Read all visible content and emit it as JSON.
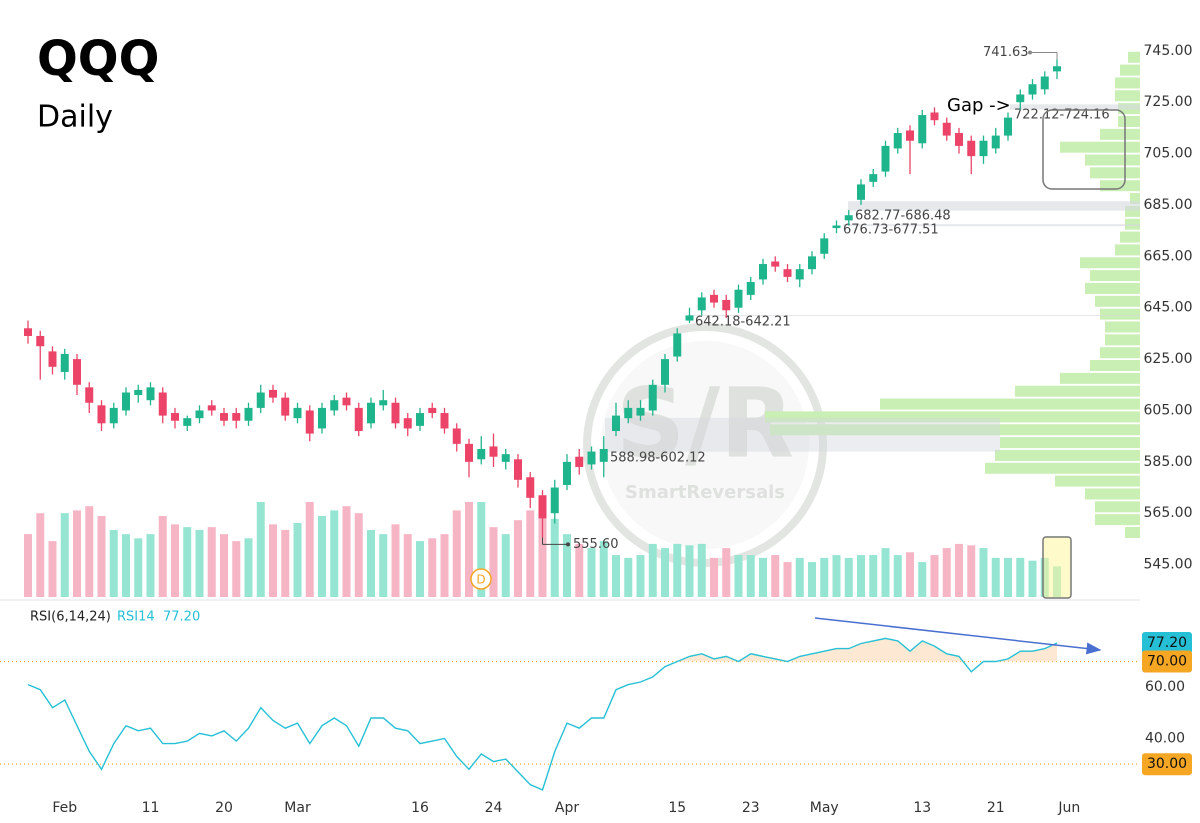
{
  "chart_data": [
    {
      "type": "candlestick",
      "title": "QQQ",
      "subtitle": "Daily",
      "categories": [
        null,
        null,
        null,
        "Feb",
        null,
        null,
        null,
        null,
        null,
        null,
        "11",
        null,
        null,
        null,
        null,
        null,
        "20",
        null,
        null,
        null,
        null,
        null,
        "Mar",
        null,
        null,
        null,
        null,
        null,
        null,
        null,
        null,
        null,
        "16",
        null,
        null,
        null,
        null,
        null,
        "24",
        null,
        null,
        null,
        null,
        null,
        "Apr",
        null,
        null,
        null,
        null,
        null,
        null,
        null,
        null,
        "15",
        null,
        null,
        null,
        null,
        null,
        "23",
        null,
        null,
        null,
        null,
        null,
        "May",
        null,
        null,
        null,
        null,
        null,
        null,
        null,
        "13",
        null,
        null,
        null,
        null,
        null,
        "21",
        null,
        null,
        null,
        null,
        null,
        "Jun"
      ],
      "open": [
        637,
        634,
        628,
        620,
        625,
        614,
        607,
        600,
        605,
        611,
        609,
        612,
        604,
        599,
        602,
        607,
        604,
        604,
        601,
        606,
        613,
        610,
        602,
        605,
        598,
        605,
        610,
        606,
        600,
        607,
        608,
        602,
        599,
        606,
        604,
        598,
        592,
        586,
        591,
        585,
        586,
        579,
        572,
        565,
        576,
        587,
        584,
        585,
        597,
        602,
        603,
        605,
        615,
        626,
        640,
        644,
        650,
        648,
        645,
        650,
        656,
        663,
        660,
        656,
        660,
        666,
        676,
        679,
        687,
        694,
        698,
        707,
        714,
        709,
        721,
        717,
        713,
        710,
        704,
        707,
        712,
        725,
        728,
        730,
        737,
        null
      ],
      "high": [
        640,
        636,
        630,
        629,
        627,
        616,
        609,
        608,
        614,
        615,
        616,
        614,
        606,
        603,
        607,
        609,
        606,
        606,
        608,
        615,
        615,
        612,
        608,
        607,
        608,
        611,
        612,
        608,
        610,
        613,
        610,
        604,
        606,
        608,
        606,
        600,
        594,
        595,
        596,
        590,
        588,
        581,
        574,
        578,
        588,
        590,
        591,
        595,
        608,
        609,
        609,
        617,
        627,
        637,
        645,
        651,
        652,
        650,
        654,
        657,
        664,
        665,
        662,
        662,
        667,
        674,
        679,
        683,
        695,
        699,
        710,
        715,
        716,
        722,
        723,
        719,
        715,
        712,
        712,
        715,
        721,
        730,
        734,
        737,
        741.63,
        null
      ],
      "low": [
        631,
        617,
        619,
        617,
        611,
        604,
        597,
        598,
        603,
        608,
        607,
        600,
        598,
        597,
        600,
        603,
        599,
        598,
        599,
        604,
        608,
        601,
        600,
        593,
        596,
        603,
        605,
        595,
        598,
        605,
        598,
        595,
        597,
        602,
        596,
        589,
        579,
        584,
        583,
        582,
        575,
        567,
        555.6,
        561,
        574,
        580,
        582,
        579,
        595,
        600,
        601,
        603,
        612,
        624,
        639,
        642,
        645,
        641,
        643,
        648,
        654,
        659,
        655,
        653,
        658,
        664,
        674,
        677,
        685,
        692,
        696,
        705,
        697,
        707,
        716,
        710,
        705,
        697,
        701,
        705,
        710,
        722,
        726,
        728,
        734,
        null
      ],
      "close": [
        634,
        630,
        622,
        627,
        615,
        608,
        600,
        606,
        612,
        613,
        614,
        603,
        601,
        602,
        605,
        605,
        601,
        601,
        606,
        612,
        610,
        603,
        606,
        596,
        606,
        609,
        607,
        597,
        608,
        609,
        600,
        598,
        604,
        604,
        598,
        592,
        585,
        590,
        587,
        588,
        578,
        571,
        563,
        575,
        585,
        583,
        589,
        590,
        603,
        606,
        606,
        615,
        625,
        635,
        642,
        649,
        647,
        644,
        652,
        655,
        662,
        661,
        657,
        660,
        665,
        672,
        677,
        681,
        693,
        697,
        708,
        713,
        710,
        720,
        718,
        712,
        708,
        704,
        710,
        712,
        719,
        728,
        732,
        735,
        739,
        null
      ],
      "volume": [
        45,
        60,
        40,
        60,
        62,
        65,
        58,
        48,
        45,
        42,
        45,
        58,
        52,
        50,
        48,
        50,
        45,
        40,
        42,
        68,
        52,
        48,
        53,
        68,
        58,
        62,
        65,
        60,
        48,
        45,
        52,
        45,
        40,
        42,
        45,
        62,
        68,
        68,
        50,
        45,
        55,
        62,
        58,
        56,
        45,
        38,
        35,
        40,
        30,
        28,
        30,
        38,
        35,
        38,
        37,
        38,
        28,
        35,
        30,
        30,
        28,
        30,
        25,
        28,
        25,
        28,
        30,
        28,
        30,
        30,
        35,
        30,
        32,
        25,
        30,
        35,
        38,
        37,
        35,
        28,
        28,
        28,
        26,
        28,
        22,
        null
      ],
      "up_color": "#1fb58c",
      "down_color": "#ec4468",
      "volume_up_color": "#95e5d2",
      "volume_down_color": "#f6b5c5",
      "ylim": [
        532,
        757
      ],
      "yticks": [
        {
          "value": 545,
          "label": "545.00"
        },
        {
          "value": 565,
          "label": "565.00"
        },
        {
          "value": 585,
          "label": "585.00"
        },
        {
          "value": 605,
          "label": "605.00"
        },
        {
          "value": 625,
          "label": "625.00"
        },
        {
          "value": 645,
          "label": "645.00"
        },
        {
          "value": 665,
          "label": "665.00"
        },
        {
          "value": 685,
          "label": "685.00"
        },
        {
          "value": 705,
          "label": "705.00"
        },
        {
          "value": 725,
          "label": "725.00"
        },
        {
          "value": 745,
          "label": "745.00"
        }
      ],
      "grid": false,
      "high_label": {
        "label": "741.63",
        "value": 741.63
      },
      "low_label": {
        "label": "555.60",
        "value": 555.6
      },
      "gaps": [
        {
          "label": "722.12-724.16",
          "low": 722.12,
          "high": 724.16
        },
        {
          "label": "682.77-686.48",
          "low": 682.77,
          "high": 686.48
        },
        {
          "label": "676.73-677.51",
          "low": 676.73,
          "high": 677.51
        },
        {
          "label": "642.18-642.21",
          "low": 642.18,
          "high": 642.21
        },
        {
          "label": "588.98-602.12",
          "low": 588.98,
          "high": 602.12
        }
      ],
      "gap_note": "Gap ->",
      "dividend_marker": "D",
      "volume_profile": {
        "color": "#c9efb4",
        "levels": [
          742.5,
          737.5,
          732.5,
          727.5,
          722.5,
          717.5,
          712.5,
          707.5,
          702.5,
          697.5,
          692.5,
          687.5,
          682.5,
          677.5,
          672.5,
          667.5,
          662.5,
          657.5,
          652.5,
          647.5,
          642.5,
          637.5,
          632.5,
          627.5,
          622.5,
          617.5,
          612.5,
          607.5,
          602.5,
          597.5,
          592.5,
          587.5,
          582.5,
          577.5,
          572.5,
          567.5,
          562.5,
          557.5
        ],
        "values": [
          12,
          20,
          25,
          25,
          22,
          22,
          40,
          80,
          55,
          50,
          40,
          10,
          15,
          15,
          20,
          25,
          60,
          50,
          55,
          45,
          40,
          35,
          35,
          40,
          50,
          80,
          125,
          260,
          375,
          370,
          140,
          145,
          155,
          85,
          55,
          45,
          45,
          15
        ]
      }
    },
    {
      "type": "line",
      "title": "RSI(6,14,24)",
      "series": [
        {
          "name": "RSI14",
          "color": "#26c0d6",
          "last_label": "77.20",
          "values": [
            61,
            59,
            52,
            55,
            45,
            35,
            28,
            38,
            45,
            43,
            44,
            38,
            38,
            39,
            42,
            41,
            43,
            39,
            44,
            52,
            47,
            44,
            46,
            38,
            45,
            48,
            45,
            37,
            48,
            48,
            44,
            43,
            38,
            39,
            40,
            33,
            28,
            34,
            31,
            32,
            27,
            22,
            20,
            35,
            46,
            44,
            48,
            48,
            59,
            61,
            62,
            64,
            68,
            70,
            72,
            73,
            71,
            72,
            70,
            73,
            72,
            71,
            70,
            72,
            73,
            74,
            75,
            75,
            77,
            78,
            79,
            78,
            74,
            78,
            76,
            73,
            72,
            66,
            70,
            70,
            71,
            74,
            74,
            75,
            77.2,
            null
          ]
        }
      ],
      "ylim": [
        18,
        92
      ],
      "yticks": [
        {
          "value": 40,
          "label": "40.00"
        },
        {
          "value": 60,
          "label": "60.00"
        }
      ],
      "levels": [
        {
          "value": 70,
          "label": "70.00"
        },
        {
          "value": 30,
          "label": "30.00"
        }
      ],
      "level_color": "#f5a623"
    }
  ],
  "watermark": {
    "logo": "S/R",
    "text": "SmartReversals"
  }
}
